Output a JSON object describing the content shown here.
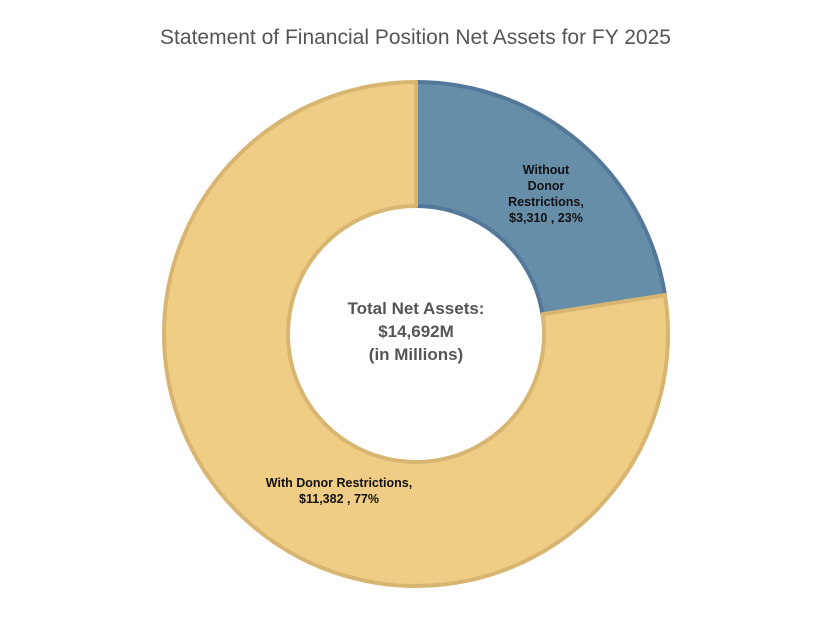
{
  "chart_data": {
    "type": "pie",
    "title": "Statement of Financial Position Net Assets for FY 2025",
    "center_label": [
      "Total Net Assets:",
      "$14,692M",
      "(in Millions)"
    ],
    "slices": [
      {
        "name": "Without Donor Restrictions",
        "value": 3310,
        "percent": 23,
        "color": "#668ea9",
        "stroke": "#54789a",
        "label_lines": [
          "Without",
          "Donor",
          "Restrictions,",
          "$3,310 , 23%"
        ]
      },
      {
        "name": "With Donor Restrictions",
        "value": 11382,
        "percent": 77,
        "color": "#f0cd85",
        "stroke": "#d8b672",
        "label_lines": [
          "With Donor Restrictions,",
          "$11,382 , 77%"
        ]
      }
    ],
    "legend": "none"
  }
}
